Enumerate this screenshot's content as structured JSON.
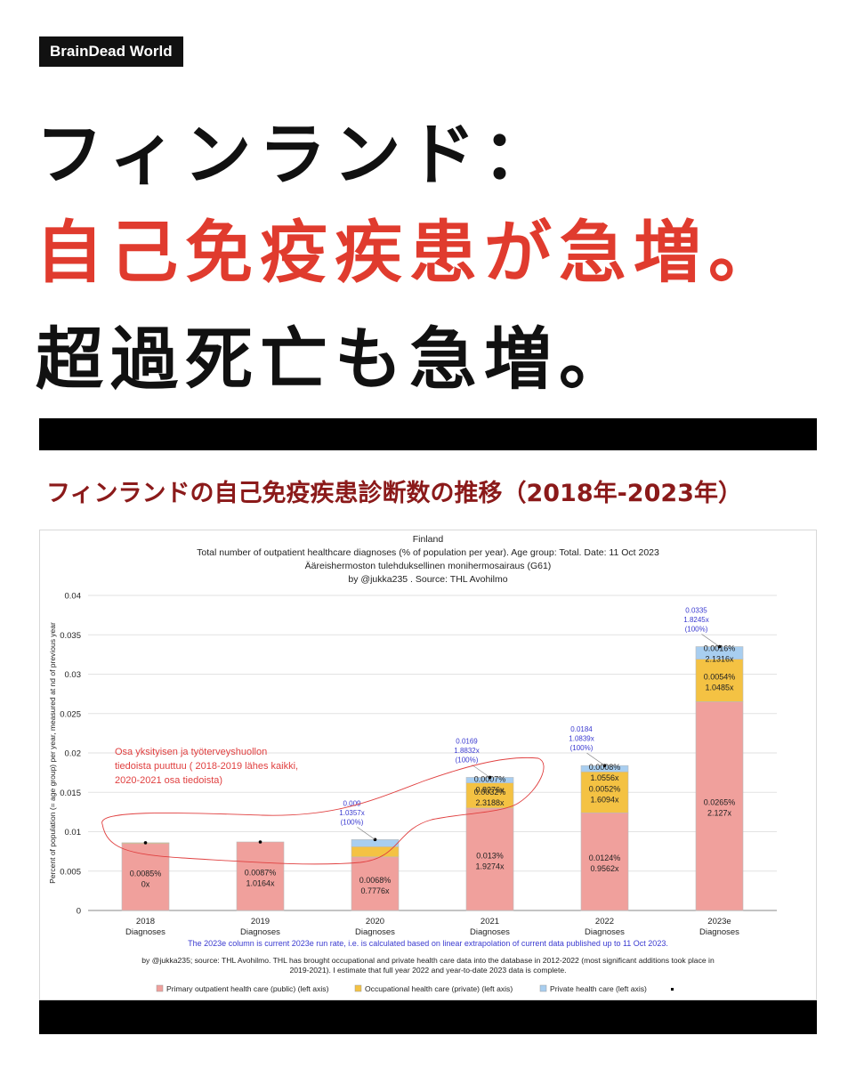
{
  "brand": "BrainDead World",
  "headline": {
    "line1": "フィンランド：",
    "line2": "自己免疫疾患が急増。",
    "line3": "超過死亡も急増。"
  },
  "subtitle": "フィンランドの自己免疫疾患診断数の推移（2018年-2023年）",
  "colors": {
    "public": "#f0a09c",
    "occupational": "#f4c243",
    "private": "#a8cef0",
    "headline_red": "#e03b2e",
    "annotation_red": "#e04040",
    "note_blue": "#3a3ad0"
  },
  "chart_data": {
    "type": "bar",
    "stacked": true,
    "title_lines": [
      "Finland",
      "Total number of outpatient healthcare diagnoses (% of population per year). Age group: Total. Date: 11 Oct 2023",
      "Ääreishermoston tulehduksellinen monihermosairaus (G61)",
      "by @jukka235 . Source: THL Avohilmo"
    ],
    "ylabel": "Percent of population (= age group) per year, measured at nd of previous year",
    "ylim": [
      0,
      0.04
    ],
    "yticks": [
      "0",
      "0.005",
      "0.01",
      "0.015",
      "0.02",
      "0.025",
      "0.03",
      "0.035",
      "0.04"
    ],
    "ytick_values": [
      0,
      0.005,
      0.01,
      0.015,
      0.02,
      0.025,
      0.03,
      0.035,
      0.04
    ],
    "categories": [
      {
        "year": "2018",
        "sub": "Diagnoses"
      },
      {
        "year": "2019",
        "sub": "Diagnoses"
      },
      {
        "year": "2020",
        "sub": "Diagnoses"
      },
      {
        "year": "2021",
        "sub": "Diagnoses"
      },
      {
        "year": "2022",
        "sub": "Diagnoses"
      },
      {
        "year": "2023e",
        "sub": "Diagnoses"
      }
    ],
    "series": [
      {
        "name": "Primary outpatient health care (public) (left axis)",
        "key": "public",
        "values": [
          0.0085,
          0.0087,
          0.0068,
          0.013,
          0.0124,
          0.0265
        ],
        "labels": [
          "0.0085%",
          "0.0087%",
          "0.0068%",
          "0.013%",
          "0.0124%",
          "0.0265%"
        ],
        "ratios": [
          "0x",
          "1.0164x",
          "0.7776x",
          "1.9274x",
          "0.9562x",
          "2.127x"
        ]
      },
      {
        "name": "Occupational health care (private) (left axis)",
        "key": "occupational",
        "values": [
          0.0001,
          0.0,
          0.0013,
          0.0032,
          0.0052,
          0.0054
        ],
        "labels": [
          "",
          "",
          "",
          "0.0032%",
          "0.0052%",
          "0.0054%"
        ],
        "ratios": [
          "",
          "",
          "",
          "2.3188x",
          "1.6094x",
          "1.0485x"
        ]
      },
      {
        "name": "Private health care (left axis)",
        "key": "private",
        "values": [
          0.0,
          0.0,
          0.0009,
          0.0007,
          0.0008,
          0.0016
        ],
        "labels": [
          "",
          "",
          "",
          "0.0007%",
          "0.0008%",
          "0.0016%"
        ],
        "ratios": [
          "",
          "",
          "",
          "0.8276x",
          "1.0556x",
          "2.1316x"
        ]
      }
    ],
    "totals": [
      0.0086,
      0.0087,
      0.009,
      0.0169,
      0.0184,
      0.0335
    ],
    "total_labels": [
      null,
      null,
      [
        "0.009",
        "1.0357x",
        "(100%)"
      ],
      [
        "0.0169",
        "1.8832x",
        "(100%)"
      ],
      [
        "0.0184",
        "1.0839x",
        "(100%)"
      ],
      [
        "0.0335",
        "1.8245x",
        "(100%)"
      ]
    ],
    "annotation_lines": [
      "Osa yksityisen ja työterveyshuollon",
      "tiedoista puuttuu ( 2018-2019 lähes kaikki,",
      "2020-2021 osa tiedoista)"
    ],
    "note": "The 2023e column is current 2023e run rate, i.e. is calculated based on linear extrapolation of current data published up to 11 Oct 2023.",
    "source_lines": [
      "by @jukka235; source: THL Avohilmo. THL has brought occupational and private health care data into the database in 2012-2022 (most significant additions took place in",
      "2019-2021). I estimate that full year 2022 and year-to-date 2023 data is complete."
    ],
    "legend_position": "bottom"
  }
}
